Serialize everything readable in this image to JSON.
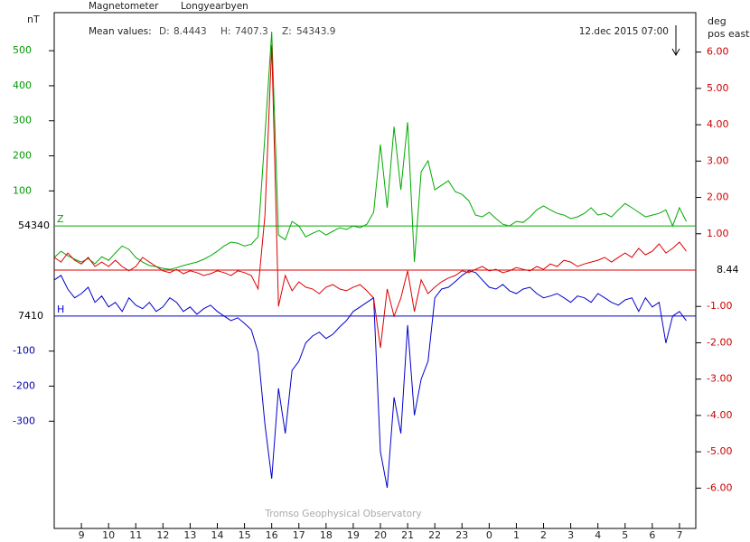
{
  "chart_data": {
    "type": "line",
    "title": "Magnetometer",
    "subtitle": "Longyearbyen",
    "timestamp": "12.dec 2015 07:00",
    "credit": "Tromso Geophysical Observatory",
    "y_label": "nT",
    "y2_label": [
      "deg",
      "pos east"
    ],
    "mean_values": {
      "label": "Mean values:",
      "items": [
        {
          "name": "D:",
          "value": 8.4443
        },
        {
          "name": "H:",
          "value": 7407.3
        },
        {
          "name": "Z:",
          "value": 54343.9
        }
      ]
    },
    "xlim": [
      8,
      31.6
    ],
    "xticks": [
      9,
      10,
      11,
      12,
      13,
      14,
      15,
      16,
      17,
      18,
      19,
      20,
      21,
      22,
      23,
      {
        "value": 24,
        "label": "0"
      },
      {
        "value": 25,
        "label": "1"
      },
      {
        "value": 26,
        "label": "2"
      },
      {
        "value": 27,
        "label": "3"
      },
      {
        "value": 28,
        "label": "4"
      },
      {
        "value": 29,
        "label": "5"
      },
      {
        "value": 30,
        "label": "6"
      },
      {
        "value": 31,
        "label": "7"
      }
    ],
    "axes": {
      "z": {
        "ylim": [
          -863,
          606
        ],
        "yticks": [
          100,
          200,
          300,
          400,
          500
        ],
        "baseline": 54340,
        "color": "#009900"
      },
      "h": {
        "ylim": [
          -606,
          863
        ],
        "yticks": [
          -100,
          -200,
          -300
        ],
        "baseline": 7410,
        "color": "#0000aa"
      },
      "d": {
        "ylim": [
          -7.11,
          7.06
        ],
        "yticks": [
          {
            "value": 6,
            "label": "6.00"
          },
          {
            "value": 5,
            "label": "5.00"
          },
          {
            "value": 4,
            "label": "4.00"
          },
          {
            "value": 3,
            "label": "3.00"
          },
          {
            "value": 2,
            "label": "2.00"
          },
          {
            "value": 1,
            "label": "1.00"
          },
          {
            "value": -1,
            "label": "-1.00"
          },
          {
            "value": -2,
            "label": "-2.00"
          },
          {
            "value": -3,
            "label": "-3.00"
          },
          {
            "value": -4,
            "label": "-4.00"
          },
          {
            "value": -5,
            "label": "-5.00"
          },
          {
            "value": -6,
            "label": "-6.00"
          }
        ],
        "baseline": 8.44,
        "color": "#cc0000"
      }
    },
    "x": [
      8,
      8.25,
      8.5,
      8.75,
      9,
      9.25,
      9.5,
      9.75,
      10,
      10.25,
      10.5,
      10.75,
      11,
      11.25,
      11.5,
      11.75,
      12,
      12.25,
      12.5,
      12.75,
      13,
      13.25,
      13.5,
      13.75,
      14,
      14.25,
      14.5,
      14.75,
      15,
      15.25,
      15.5,
      15.75,
      16,
      16.25,
      16.5,
      16.75,
      17,
      17.25,
      17.5,
      17.75,
      18,
      18.25,
      18.5,
      18.75,
      19,
      19.25,
      19.5,
      19.75,
      20,
      20.25,
      20.5,
      20.75,
      21,
      21.25,
      21.5,
      21.75,
      22,
      22.25,
      22.5,
      22.75,
      23,
      23.25,
      23.5,
      23.75,
      24,
      24.25,
      24.5,
      24.75,
      25,
      25.25,
      25.5,
      25.75,
      26,
      26.25,
      26.5,
      26.75,
      27,
      27.25,
      27.5,
      27.75,
      28,
      28.25,
      28.5,
      28.75,
      29,
      29.25,
      29.5,
      29.75,
      30,
      30.25,
      30.5,
      30.75,
      31,
      31.25
    ],
    "series": [
      {
        "name": "Z",
        "axis": "z",
        "color": "#00aa00",
        "values": [
          -90,
          -72,
          -85,
          -95,
          -103,
          -93,
          -108,
          -88,
          -98,
          -77,
          -57,
          -67,
          -90,
          -103,
          -113,
          -116,
          -121,
          -124,
          -119,
          -113,
          -108,
          -103,
          -95,
          -85,
          -72,
          -57,
          -46,
          -49,
          -57,
          -52,
          -31,
          258,
          554,
          -26,
          -39,
          13,
          0,
          -31,
          -21,
          -13,
          -26,
          -15,
          -5,
          -10,
          0,
          -5,
          5,
          39,
          232,
          52,
          283,
          103,
          296,
          -103,
          155,
          186,
          103,
          116,
          129,
          98,
          90,
          72,
          31,
          26,
          39,
          21,
          5,
          0,
          13,
          10,
          26,
          46,
          57,
          46,
          36,
          31,
          21,
          26,
          36,
          52,
          31,
          36,
          26,
          46,
          64,
          52,
          39,
          26,
          31,
          36,
          46,
          0,
          52,
          13
        ]
      },
      {
        "name": "H",
        "axis": "h",
        "color": "#0000cc",
        "values": [
          103,
          116,
          77,
          52,
          64,
          82,
          39,
          57,
          26,
          39,
          13,
          52,
          31,
          21,
          39,
          13,
          26,
          52,
          39,
          13,
          26,
          5,
          21,
          31,
          13,
          0,
          -13,
          -5,
          -21,
          -39,
          -103,
          -309,
          -464,
          -206,
          -335,
          -155,
          -129,
          -77,
          -57,
          -46,
          -64,
          -52,
          -31,
          -13,
          13,
          26,
          39,
          52,
          -387,
          -490,
          -232,
          -335,
          -26,
          -283,
          -180,
          -129,
          52,
          77,
          82,
          98,
          116,
          129,
          124,
          103,
          82,
          77,
          90,
          72,
          64,
          77,
          82,
          64,
          52,
          57,
          64,
          52,
          39,
          57,
          52,
          39,
          64,
          52,
          39,
          31,
          46,
          52,
          13,
          52,
          26,
          39,
          -77,
          0,
          13,
          -13
        ]
      },
      {
        "axis": "d",
        "color": "#dd0000",
        "values": [
          0.35,
          0.22,
          0.47,
          0.27,
          0.17,
          0.35,
          0.1,
          0.22,
          0.1,
          0.27,
          0.1,
          -0.02,
          0.1,
          0.35,
          0.22,
          0.1,
          -0.02,
          -0.07,
          0.02,
          -0.1,
          -0.02,
          -0.07,
          -0.15,
          -0.1,
          -0.02,
          -0.07,
          -0.15,
          -0.02,
          -0.07,
          -0.15,
          -0.52,
          1.5,
          6.2,
          -1.0,
          -0.15,
          -0.57,
          -0.32,
          -0.47,
          -0.52,
          -0.65,
          -0.47,
          -0.4,
          -0.52,
          -0.57,
          -0.47,
          -0.4,
          -0.57,
          -0.77,
          -2.14,
          -0.52,
          -1.27,
          -0.77,
          -0.02,
          -1.14,
          -0.27,
          -0.65,
          -0.47,
          -0.32,
          -0.22,
          -0.15,
          -0.02,
          -0.07,
          0.02,
          0.1,
          -0.02,
          0.02,
          -0.07,
          -0.02,
          0.07,
          0.02,
          -0.02,
          0.1,
          0.02,
          0.17,
          0.1,
          0.27,
          0.22,
          0.1,
          0.17,
          0.22,
          0.27,
          0.35,
          0.22,
          0.35,
          0.47,
          0.35,
          0.6,
          0.42,
          0.52,
          0.72,
          0.47,
          0.6,
          0.77,
          0.52
        ]
      }
    ]
  }
}
